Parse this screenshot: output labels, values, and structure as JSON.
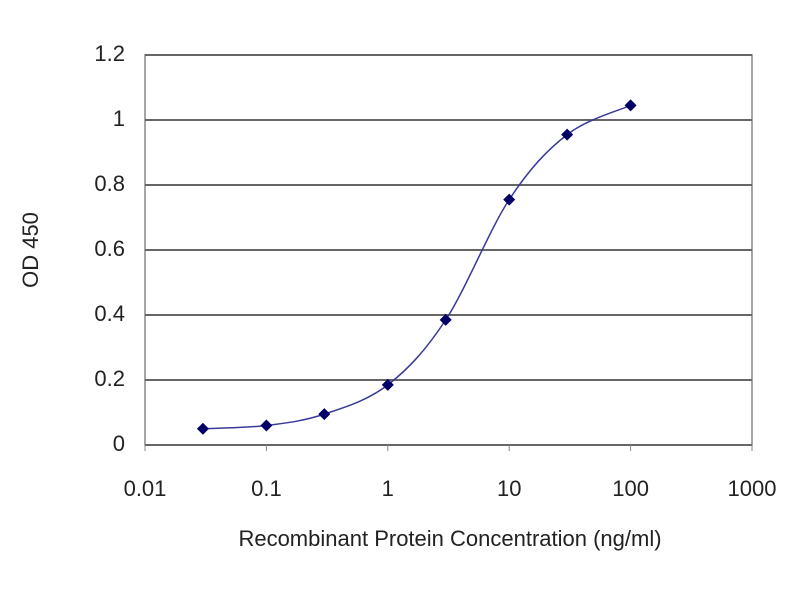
{
  "chart_data": {
    "type": "scatter",
    "xlabel": "Recombinant Protein Concentration (ng/ml)",
    "ylabel": "OD 450",
    "x": [
      0.03,
      0.1,
      0.3,
      1,
      3,
      10,
      30,
      100
    ],
    "values": [
      0.05,
      0.06,
      0.095,
      0.185,
      0.385,
      0.755,
      0.955,
      1.045
    ],
    "color": "#000066",
    "line_color": "#3a3a9a",
    "line": "smooth",
    "xscale": "log",
    "xlim": [
      0.01,
      1000
    ],
    "xticks": [
      0.01,
      0.1,
      1,
      10,
      100,
      1000
    ],
    "ylim": [
      0,
      1.2
    ],
    "yticks": [
      0,
      0.2,
      0.4,
      0.6,
      0.8,
      1,
      1.2
    ],
    "grid": true
  }
}
